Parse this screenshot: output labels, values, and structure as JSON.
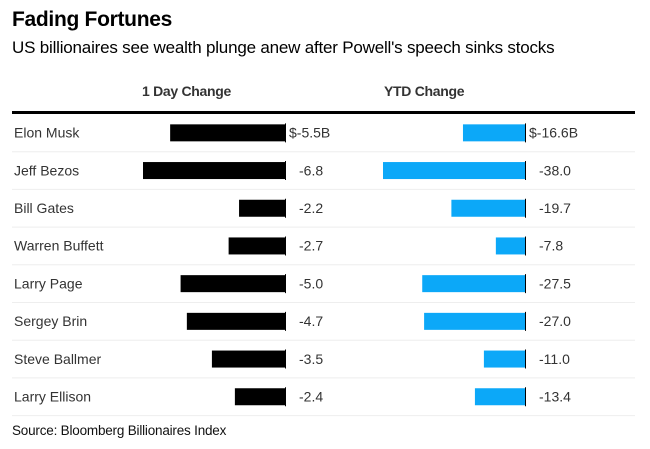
{
  "title": "Fading Fortunes",
  "subtitle": "US billionaires see wealth plunge anew after Powell's speech sinks stocks",
  "source": "Source: Bloomberg Billionaires Index",
  "colors": {
    "day": "#000000",
    "ytd": "#0ca8f8",
    "axis": "#000000",
    "gridline": "#eeeeee",
    "label": "#333333"
  },
  "chart_data": {
    "type": "bar",
    "orientation": "horizontal",
    "title": "Fading Fortunes",
    "subtitle": "US billionaires see wealth plunge anew after Powell's speech sinks stocks",
    "unit": "$B",
    "categories": [
      "Elon Musk",
      "Jeff Bezos",
      "Bill Gates",
      "Warren Buffett",
      "Larry Page",
      "Sergey Brin",
      "Steve Ballmer",
      "Larry Ellison"
    ],
    "series": [
      {
        "name": "1 Day Change",
        "values": [
          -5.5,
          -6.8,
          -2.2,
          -2.7,
          -5.0,
          -4.7,
          -3.5,
          -2.4
        ],
        "labels": [
          "$-5.5B",
          "-6.8",
          "-2.2",
          "-2.7",
          "-5.0",
          "-4.7",
          "-3.5",
          "-2.4"
        ]
      },
      {
        "name": "YTD Change",
        "values": [
          -16.6,
          -38.0,
          -19.7,
          -7.8,
          -27.5,
          -27.0,
          -11.0,
          -13.4
        ],
        "labels": [
          "$-16.6B",
          "-38.0",
          "-19.7",
          "-7.8",
          "-27.5",
          "-27.0",
          "-11.0",
          "-13.4"
        ]
      }
    ],
    "source": "Source: Bloomberg Billionaires Index"
  }
}
